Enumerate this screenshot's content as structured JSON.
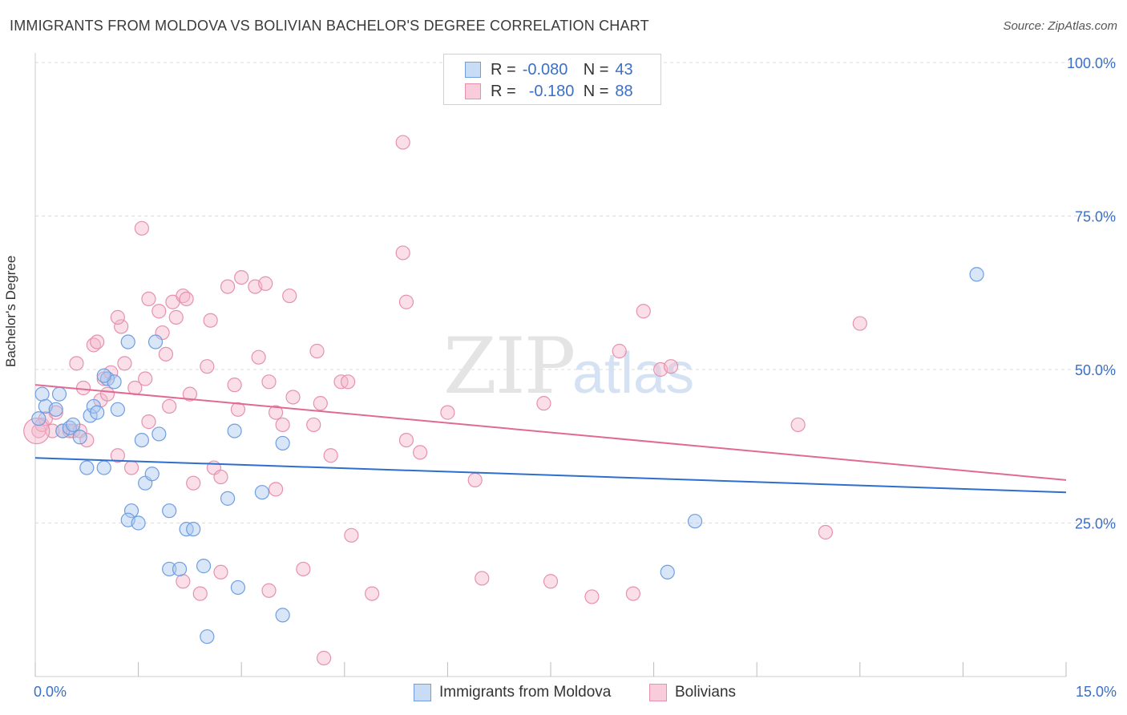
{
  "title": "IMMIGRANTS FROM MOLDOVA VS BOLIVIAN BACHELOR'S DEGREE CORRELATION CHART",
  "source": "Source: ZipAtlas.com",
  "watermark": {
    "zip": "ZIP",
    "atlas": "atlas"
  },
  "legend": {
    "rows": [
      {
        "r_label": "R =",
        "r_value": "-0.080",
        "n_label": "N =",
        "n_value": "43"
      },
      {
        "r_label": "R =",
        "r_value": "-0.180",
        "n_label": "N =",
        "n_value": "88"
      }
    ]
  },
  "bottom_legend": {
    "series1": "Immigrants from Moldova",
    "series2": "Bolivians"
  },
  "colors": {
    "blue_fill": "#aac8f0",
    "blue_stroke": "#6f9ee0",
    "blue_line": "#2f6fcc",
    "pink_fill": "#f5b8cc",
    "pink_stroke": "#e691ae",
    "pink_line": "#e06a94",
    "axis_label": "#3b6fc7",
    "grid": "#dddddd"
  },
  "chart_data": {
    "type": "scatter",
    "title": "IMMIGRANTS FROM MOLDOVA VS BOLIVIAN BACHELOR'S DEGREE CORRELATION CHART",
    "xlabel": "",
    "ylabel": "Bachelor's Degree",
    "xlim": [
      0,
      15
    ],
    "ylim": [
      0,
      105
    ],
    "x_tick_labels": [
      "0.0%",
      "15.0%"
    ],
    "y_ticks": [
      25,
      50,
      75,
      100
    ],
    "y_tick_labels": [
      "25.0%",
      "50.0%",
      "75.0%",
      "100.0%"
    ],
    "grid": true,
    "series": [
      {
        "name": "Immigrants from Moldova",
        "color": "blue",
        "r": -0.08,
        "n": 43,
        "trend": {
          "x": [
            0,
            15
          ],
          "y": [
            35.6,
            30.0
          ]
        },
        "points": [
          [
            0.1,
            46
          ],
          [
            0.15,
            44
          ],
          [
            0.3,
            43.5
          ],
          [
            0.35,
            46
          ],
          [
            0.4,
            40
          ],
          [
            0.5,
            40.5
          ],
          [
            0.55,
            41
          ],
          [
            0.65,
            39
          ],
          [
            0.8,
            42.5
          ],
          [
            0.85,
            44
          ],
          [
            0.9,
            43
          ],
          [
            1.05,
            48.5
          ],
          [
            1.15,
            48
          ],
          [
            1.2,
            43.5
          ],
          [
            1.35,
            54.5
          ],
          [
            1.55,
            38.5
          ],
          [
            1.75,
            54.5
          ],
          [
            1.8,
            39.5
          ],
          [
            0.75,
            34
          ],
          [
            1.0,
            34
          ],
          [
            1.6,
            31.5
          ],
          [
            1.7,
            33
          ],
          [
            1.4,
            27
          ],
          [
            1.35,
            25.5
          ],
          [
            1.5,
            25
          ],
          [
            1.95,
            27
          ],
          [
            2.2,
            24
          ],
          [
            2.3,
            24
          ],
          [
            1.95,
            17.5
          ],
          [
            2.1,
            17.5
          ],
          [
            2.45,
            18
          ],
          [
            2.8,
            29
          ],
          [
            2.9,
            40
          ],
          [
            2.95,
            14.5
          ],
          [
            3.3,
            30
          ],
          [
            3.6,
            38
          ],
          [
            3.6,
            10
          ],
          [
            2.5,
            6.5
          ],
          [
            9.6,
            25.3
          ],
          [
            9.2,
            17
          ],
          [
            13.7,
            65.5
          ],
          [
            0.05,
            42
          ],
          [
            1.0,
            49
          ]
        ]
      },
      {
        "name": "Bolivians",
        "color": "pink",
        "r": -0.18,
        "n": 88,
        "trend": {
          "x": [
            0,
            15
          ],
          "y": [
            47.5,
            32.0
          ]
        },
        "points": [
          [
            0.05,
            40
          ],
          [
            0.1,
            41
          ],
          [
            0.15,
            42
          ],
          [
            0.25,
            40
          ],
          [
            0.3,
            43
          ],
          [
            0.4,
            40
          ],
          [
            0.5,
            40
          ],
          [
            0.55,
            40
          ],
          [
            0.65,
            40
          ],
          [
            0.7,
            47
          ],
          [
            0.75,
            38.5
          ],
          [
            0.85,
            54
          ],
          [
            0.95,
            45
          ],
          [
            1.0,
            48.5
          ],
          [
            1.05,
            46
          ],
          [
            1.1,
            49.5
          ],
          [
            1.25,
            57
          ],
          [
            1.3,
            51
          ],
          [
            1.45,
            47
          ],
          [
            1.6,
            48.5
          ],
          [
            1.65,
            41.5
          ],
          [
            1.55,
            73
          ],
          [
            1.65,
            61.5
          ],
          [
            1.8,
            59.5
          ],
          [
            1.85,
            56
          ],
          [
            1.9,
            52.5
          ],
          [
            1.95,
            44
          ],
          [
            2.0,
            61
          ],
          [
            2.15,
            62
          ],
          [
            2.2,
            61.5
          ],
          [
            2.05,
            58.5
          ],
          [
            2.25,
            46
          ],
          [
            2.5,
            50.5
          ],
          [
            2.55,
            58
          ],
          [
            2.8,
            63.5
          ],
          [
            2.9,
            47.5
          ],
          [
            2.95,
            43.5
          ],
          [
            3.0,
            65
          ],
          [
            3.2,
            63.5
          ],
          [
            3.35,
            64
          ],
          [
            3.25,
            52
          ],
          [
            3.4,
            48
          ],
          [
            3.5,
            43
          ],
          [
            3.6,
            41
          ],
          [
            3.7,
            62
          ],
          [
            3.75,
            45.5
          ],
          [
            4.1,
            53
          ],
          [
            4.15,
            44.5
          ],
          [
            4.05,
            41
          ],
          [
            4.45,
            48
          ],
          [
            4.55,
            48
          ],
          [
            4.3,
            36
          ],
          [
            5.35,
            87
          ],
          [
            5.35,
            69
          ],
          [
            5.4,
            61
          ],
          [
            5.4,
            38.5
          ],
          [
            5.6,
            36.5
          ],
          [
            6.0,
            43
          ],
          [
            6.4,
            32
          ],
          [
            1.2,
            36
          ],
          [
            1.4,
            34
          ],
          [
            2.3,
            31.5
          ],
          [
            2.6,
            34
          ],
          [
            2.7,
            32.5
          ],
          [
            3.5,
            30.5
          ],
          [
            2.15,
            15.5
          ],
          [
            2.4,
            13.5
          ],
          [
            2.7,
            17
          ],
          [
            3.4,
            14
          ],
          [
            3.9,
            17.5
          ],
          [
            4.6,
            23
          ],
          [
            4.9,
            13.5
          ],
          [
            6.5,
            16
          ],
          [
            7.4,
            44.5
          ],
          [
            7.5,
            15.5
          ],
          [
            8.1,
            13
          ],
          [
            8.5,
            53
          ],
          [
            8.7,
            13.5
          ],
          [
            9.1,
            50
          ],
          [
            9.25,
            50.5
          ],
          [
            8.85,
            59.5
          ],
          [
            11.1,
            41
          ],
          [
            11.5,
            23.5
          ],
          [
            12.0,
            57.5
          ],
          [
            0.9,
            54.5
          ],
          [
            0.6,
            51
          ],
          [
            1.2,
            58.5
          ],
          [
            4.2,
            3
          ]
        ]
      }
    ]
  }
}
